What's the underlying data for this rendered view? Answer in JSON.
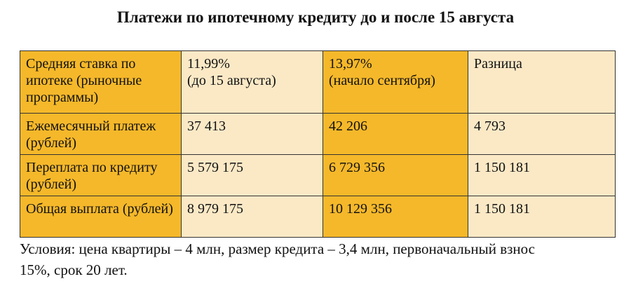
{
  "title": "Платежи по ипотечному кредиту до и после 15 августа",
  "table": {
    "header": [
      "Средняя ставка по ипотеке (рыночные программы)",
      "11,99%\n(до 15 августа)",
      "13,97%\n(начало сентября)",
      "Разница"
    ],
    "rows": [
      [
        "Ежемесячный платеж (рублей)",
        "37 413",
        "42 206",
        "4 793"
      ],
      [
        "Переплата по кредиту (рублей)",
        "5 579 175",
        "6 729 356",
        "1 150 181"
      ],
      [
        "Общая выплата (рублей)",
        "8 979 175",
        "10 129 356",
        "1 150 181"
      ]
    ]
  },
  "note": "Условия: цена квартиры – 4 млн, размер кредита – 3,4 млн, первоначальный взнос 15%, срок 20 лет."
}
